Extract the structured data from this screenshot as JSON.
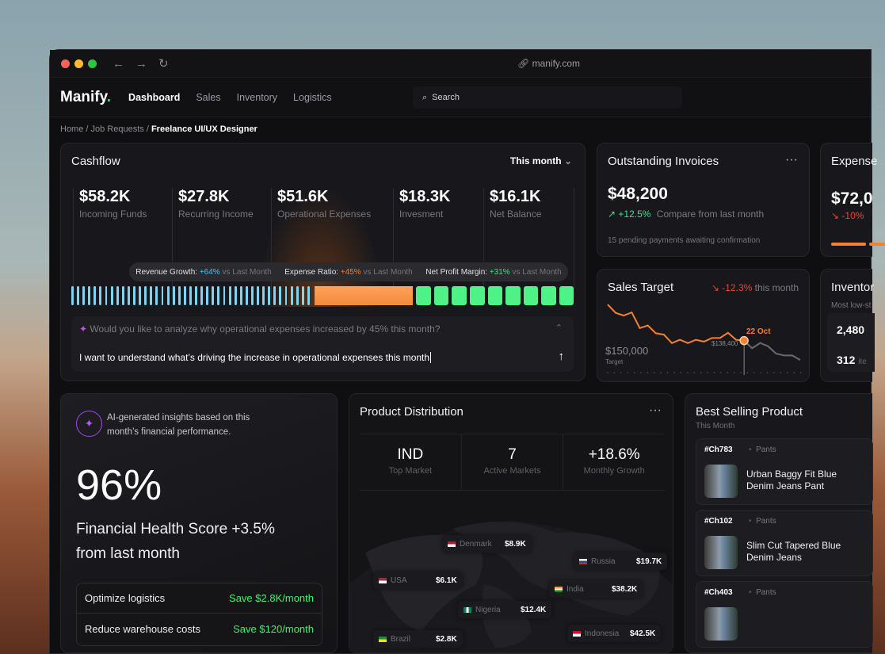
{
  "browser": {
    "url": "manify.com"
  },
  "nav": {
    "logo": "Manify",
    "logo_dot": ".",
    "items": [
      "Dashboard",
      "Sales",
      "Inventory",
      "Logistics"
    ],
    "active": "Dashboard",
    "search_placeholder": "Search"
  },
  "breadcrumb": [
    "Home",
    "Job Requests",
    "Freelance UI/UX Designer"
  ],
  "cashflow": {
    "title": "Cashflow",
    "period": "This month",
    "stats": [
      {
        "value": "$58.2K",
        "label": "Incoming Funds"
      },
      {
        "value": "$27.8K",
        "label": "Recurring Income"
      },
      {
        "value": "$51.6K",
        "label": "Operational Expenses"
      },
      {
        "value": "$18.3K",
        "label": "Invesment"
      },
      {
        "value": "$16.1K",
        "label": "Net Balance"
      }
    ],
    "metrics": [
      {
        "label": "Revenue Growth:",
        "value": "+64%",
        "suffix": "vs Last Month",
        "color": "#4cc3f0"
      },
      {
        "label": "Expense Ratio:",
        "value": "+45%",
        "suffix": "vs Last Month",
        "color": "#f5802f"
      },
      {
        "label": "Net Profit Margin:",
        "value": "+31%",
        "suffix": "vs Last Month",
        "color": "#3ee08a"
      }
    ],
    "bar_colors": {
      "revenue": "#7dd3f0",
      "expense": "#f28a3d",
      "profit": "#4ff287"
    },
    "ai_prompt": "Would you like to analyze why operational expenses increased by 45% this month?",
    "input_value": "I want to understand what’s driving the increase in operational expenses this month"
  },
  "invoices": {
    "title": "Outstanding Invoices",
    "amount": "$48,200",
    "change": "+12.5%",
    "change_note": "Compare from last month",
    "footer": "15 pending payments awaiting confirmation"
  },
  "expense": {
    "title": "Expense",
    "amount": "$72,0",
    "change": "-10%"
  },
  "sales_target": {
    "title": "Sales Target",
    "change": "-12.3%",
    "change_note": "this month",
    "target_value": "$150,000",
    "target_label": "Target",
    "point_label": "22 Oct",
    "point_value": "$138,400",
    "series": [
      160000,
      155000,
      153400,
      155300,
      145900,
      147500,
      142800,
      142000,
      136900,
      138900,
      136900,
      138900,
      137800,
      140000,
      140000,
      143100,
      138900,
      138400,
      133800,
      137000,
      135000,
      130600,
      129500,
      129500,
      126800
    ],
    "highlight_index": 17
  },
  "inventory": {
    "title": "Inventor",
    "subtitle": "Most low-st",
    "rows": [
      {
        "value": "2,480",
        "unit": ""
      },
      {
        "value": "312",
        "unit": "ite"
      }
    ]
  },
  "insights": {
    "intro": "AI-generated insights based on this month’s financial performance.",
    "score": "96%",
    "headline": "Financial Health Score +3.5% from last month",
    "suggestions": [
      {
        "label": "Optimize logistics",
        "saving": "Save $2.8K/month"
      },
      {
        "label": "Reduce warehouse costs",
        "saving": "Save $120/month"
      }
    ]
  },
  "distribution": {
    "title": "Product Distribution",
    "kpis": [
      {
        "value": "IND",
        "label": "Top Market"
      },
      {
        "value": "7",
        "label": "Active Markets"
      },
      {
        "value": "+18.6%",
        "label": "Monthly Growth"
      }
    ],
    "markets": [
      {
        "country": "Denmark",
        "amount": "$8.9K"
      },
      {
        "country": "Russia",
        "amount": "$19.7K"
      },
      {
        "country": "USA",
        "amount": "$6.1K"
      },
      {
        "country": "India",
        "amount": "$38.2K"
      },
      {
        "country": "Nigeria",
        "amount": "$12.4K"
      },
      {
        "country": "Brazil",
        "amount": "$2.8K"
      },
      {
        "country": "Indonesia",
        "amount": "$42.5K"
      }
    ]
  },
  "best_selling": {
    "title": "Best Selling Product",
    "subtitle": "This Month",
    "products": [
      {
        "id": "#Ch783",
        "category": "Pants",
        "name": "Urban Baggy Fit Blue Denim Jeans Pant"
      },
      {
        "id": "#Ch102",
        "category": "Pants",
        "name": "Slim Cut Tapered Blue Denim Jeans"
      },
      {
        "id": "#Ch403",
        "category": "Pants",
        "name": ""
      }
    ]
  }
}
